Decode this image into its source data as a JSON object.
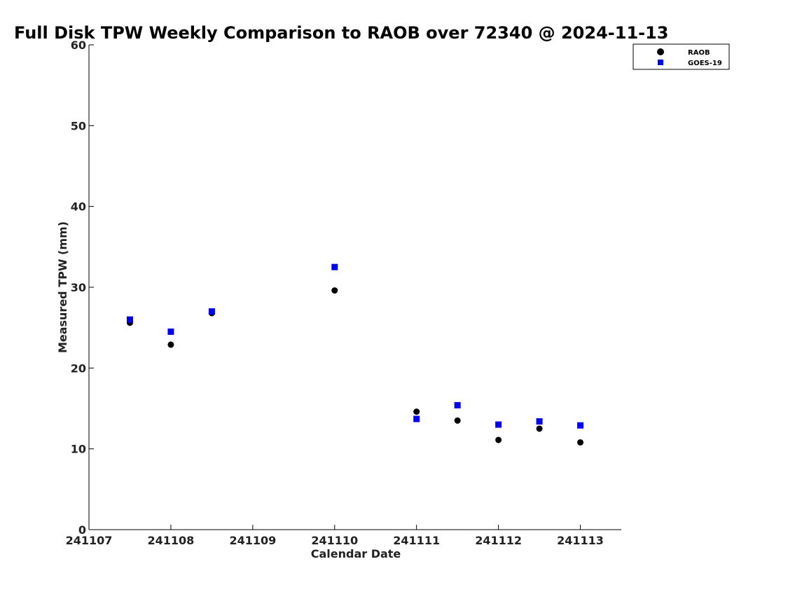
{
  "chart_data": {
    "type": "scatter",
    "title": "Full Disk TPW Weekly Comparison to RAOB over 72340 @ 2024-11-13",
    "xlabel": "Calendar Date",
    "ylabel": "Measured TPW (mm)",
    "x_tick_labels": [
      "241107",
      "241108",
      "241109",
      "241110",
      "241111",
      "241112",
      "241113"
    ],
    "x_tick_values": [
      0,
      1,
      2,
      3,
      4,
      5,
      6
    ],
    "xlim": [
      0,
      6.5
    ],
    "y_ticks": [
      0,
      10,
      20,
      30,
      40,
      50,
      60
    ],
    "ylim": [
      0,
      60
    ],
    "grid": false,
    "legend_position": "top-right",
    "series": [
      {
        "name": "RAOB",
        "marker": "circle",
        "color": "#000000",
        "points": [
          {
            "x": 0.5,
            "y": 25.6
          },
          {
            "x": 1.0,
            "y": 22.9
          },
          {
            "x": 1.5,
            "y": 26.8
          },
          {
            "x": 3.0,
            "y": 29.6
          },
          {
            "x": 4.0,
            "y": 14.6
          },
          {
            "x": 4.5,
            "y": 13.5
          },
          {
            "x": 5.0,
            "y": 11.1
          },
          {
            "x": 5.5,
            "y": 12.5
          },
          {
            "x": 6.0,
            "y": 10.8
          }
        ]
      },
      {
        "name": "GOES-19",
        "marker": "square",
        "color": "#0000ee",
        "points": [
          {
            "x": 0.5,
            "y": 26.0
          },
          {
            "x": 1.0,
            "y": 24.5
          },
          {
            "x": 1.5,
            "y": 27.0
          },
          {
            "x": 3.0,
            "y": 32.5
          },
          {
            "x": 4.0,
            "y": 13.7
          },
          {
            "x": 4.5,
            "y": 15.4
          },
          {
            "x": 5.0,
            "y": 13.0
          },
          {
            "x": 5.5,
            "y": 13.4
          },
          {
            "x": 6.0,
            "y": 12.9
          }
        ]
      }
    ]
  }
}
